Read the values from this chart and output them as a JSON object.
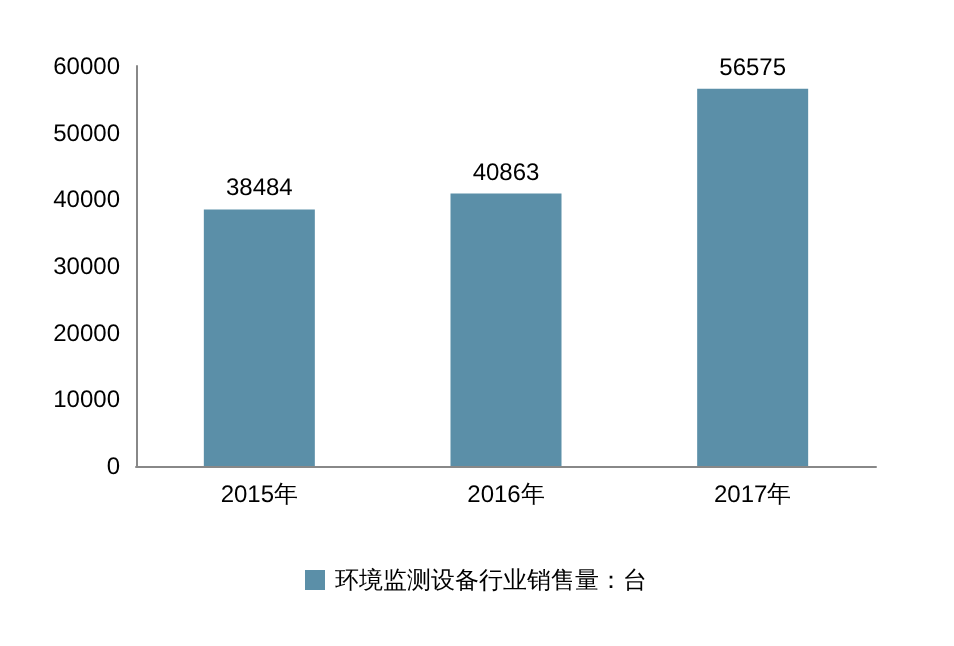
{
  "chart_data": {
    "type": "bar",
    "categories": [
      "2015年",
      "2016年",
      "2017年"
    ],
    "series": [
      {
        "name": "环境监测设备行业销售量：台",
        "color": "#5b8fa8",
        "values": [
          38484,
          40863,
          56575
        ]
      }
    ],
    "ylim": [
      0,
      60000
    ],
    "yticks": [
      0,
      10000,
      20000,
      30000,
      40000,
      50000,
      60000
    ],
    "data_labels": true,
    "grid": false,
    "legend": "bottom"
  }
}
